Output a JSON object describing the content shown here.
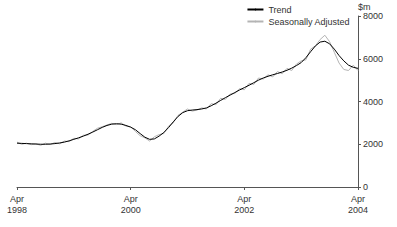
{
  "chart_data": {
    "type": "line",
    "ylabel": "$m",
    "categories": [
      "Apr\n1998",
      null,
      null,
      null,
      null,
      null,
      null,
      null,
      null,
      null,
      null,
      null,
      null,
      null,
      null,
      null,
      null,
      null,
      null,
      null,
      null,
      null,
      null,
      null,
      "Apr\n2000",
      null,
      null,
      null,
      null,
      null,
      null,
      null,
      null,
      null,
      null,
      null,
      null,
      null,
      null,
      null,
      null,
      null,
      null,
      null,
      null,
      null,
      null,
      null,
      "Apr\n2002",
      null,
      null,
      null,
      null,
      null,
      null,
      null,
      null,
      null,
      null,
      null,
      null,
      null,
      null,
      null,
      null,
      null,
      null,
      null,
      null,
      null,
      null,
      null,
      "Apr\n2004"
    ],
    "series": [
      {
        "name": "Trend",
        "color": "#000000",
        "values": [
          2050,
          2040,
          2030,
          2020,
          2010,
          2000,
          2000,
          2010,
          2030,
          2060,
          2100,
          2160,
          2230,
          2300,
          2380,
          2470,
          2570,
          2680,
          2790,
          2880,
          2940,
          2960,
          2940,
          2880,
          2800,
          2680,
          2500,
          2330,
          2230,
          2250,
          2380,
          2550,
          2780,
          3050,
          3300,
          3480,
          3570,
          3600,
          3620,
          3650,
          3700,
          3800,
          3920,
          4050,
          4180,
          4300,
          4420,
          4540,
          4650,
          4760,
          4880,
          5000,
          5100,
          5180,
          5250,
          5310,
          5380,
          5460,
          5560,
          5680,
          5820,
          6050,
          6330,
          6600,
          6780,
          6820,
          6700,
          6450,
          6150,
          5900,
          5700,
          5600,
          5550
        ]
      },
      {
        "name": "Seasonally Adjusted",
        "color": "#b4b4b4",
        "values": [
          2100,
          2000,
          2050,
          1980,
          2020,
          1950,
          2050,
          1990,
          2080,
          2020,
          2150,
          2120,
          2280,
          2250,
          2420,
          2430,
          2600,
          2750,
          2820,
          2900,
          2980,
          2920,
          3000,
          2850,
          2820,
          2600,
          2400,
          2300,
          2150,
          2350,
          2450,
          2500,
          2850,
          3000,
          3350,
          3500,
          3650,
          3550,
          3600,
          3700,
          3650,
          3900,
          3850,
          4150,
          4100,
          4350,
          4380,
          4600,
          4550,
          4850,
          4800,
          5100,
          5050,
          5250,
          5150,
          5400,
          5300,
          5550,
          5450,
          5750,
          5900,
          5950,
          6450,
          6600,
          6900,
          7100,
          6800,
          6300,
          5800,
          5500,
          5450,
          5700,
          5450
        ]
      }
    ],
    "ylim": [
      0,
      8000
    ],
    "yticks": [
      0,
      2000,
      4000,
      6000,
      8000
    ],
    "legend": "top-right",
    "grid": false
  }
}
